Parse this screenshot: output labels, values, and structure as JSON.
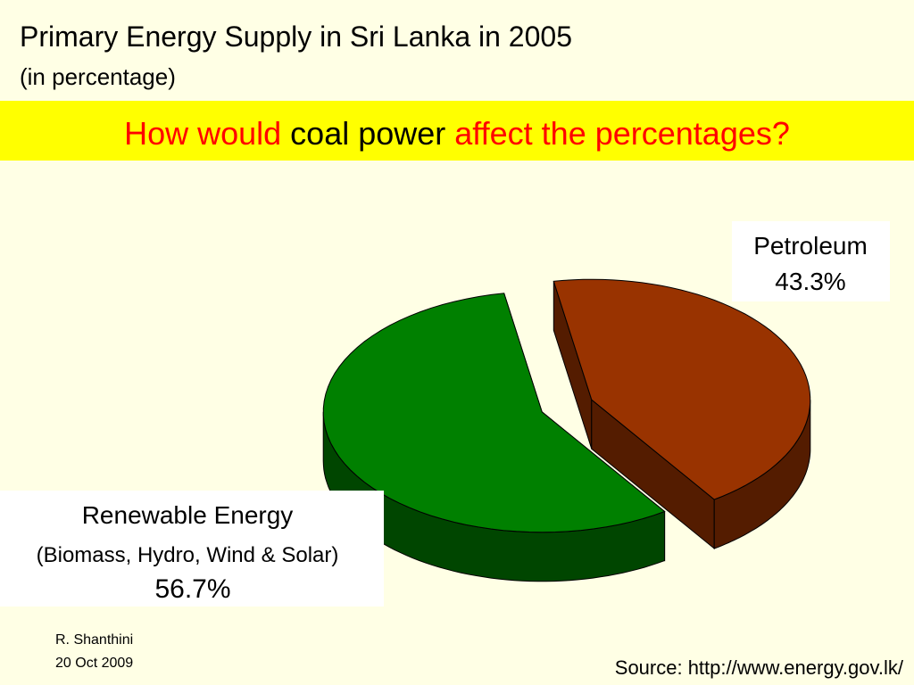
{
  "slide": {
    "title": "Primary Energy Supply in Sri Lanka in 2005",
    "subtitle": "(in percentage)",
    "question": [
      {
        "text": "How would",
        "color": "#ff0000"
      },
      {
        "text": "coal power",
        "color": "#000000"
      },
      {
        "text": "affect the percentages?",
        "color": "#ff0000"
      }
    ],
    "author": "R. Shanthini",
    "date": "20 Oct 2009",
    "source": "Source: http://www.energy.gov.lk/"
  },
  "chart_data": {
    "type": "pie",
    "categories": [
      "Renewable Energy",
      "Petroleum"
    ],
    "annotations": [
      "(Biomass, Hydro, Wind & Solar)"
    ],
    "values": [
      56.7,
      43.3
    ],
    "value_labels": [
      "56.7%",
      "43.3%"
    ],
    "colors": [
      "#008000",
      "#993300"
    ]
  }
}
